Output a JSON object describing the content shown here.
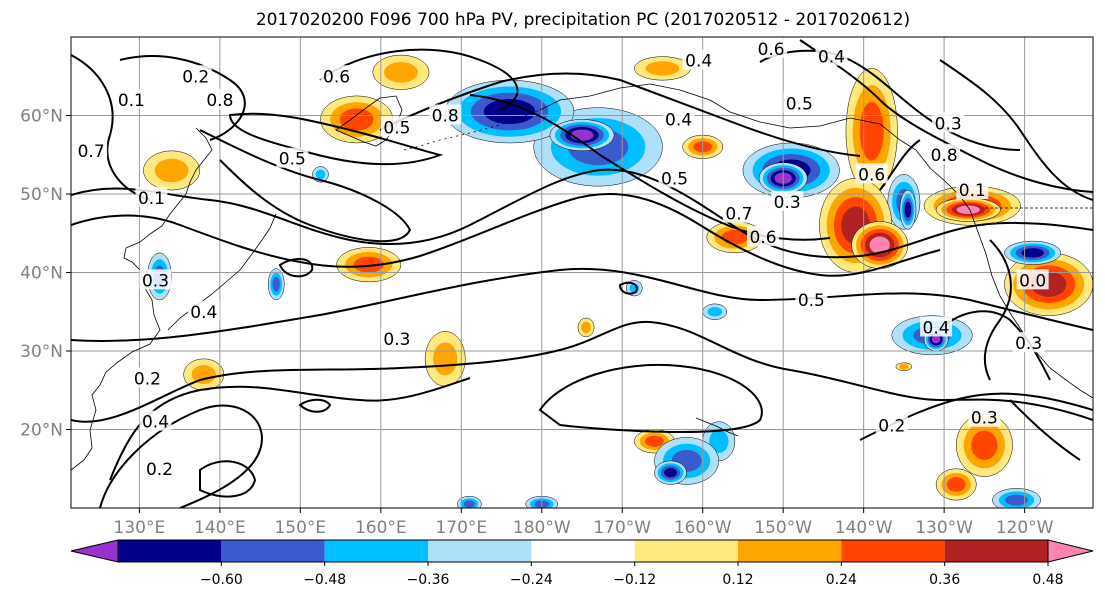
{
  "title": "2017020200 F096 700 hPa PV, precipitation PC (2017020512 - 2017020612)",
  "map": {
    "projection": "PlateCarree",
    "lon_range": [
      121.5,
      248.5
    ],
    "lat_range": [
      10,
      70
    ],
    "grid": true,
    "lat_ticks": [
      {
        "lat": 60,
        "label": "60°N"
      },
      {
        "lat": 50,
        "label": "50°N"
      },
      {
        "lat": 40,
        "label": "40°N"
      },
      {
        "lat": 30,
        "label": "30°N"
      },
      {
        "lat": 20,
        "label": "20°N"
      }
    ],
    "lon_ticks": [
      {
        "lon": 130,
        "label": "130°E"
      },
      {
        "lon": 140,
        "label": "140°E"
      },
      {
        "lon": 150,
        "label": "150°E"
      },
      {
        "lon": 160,
        "label": "160°E"
      },
      {
        "lon": 170,
        "label": "170°E"
      },
      {
        "lon": 180,
        "label": "180°W"
      },
      {
        "lon": 190,
        "label": "170°W"
      },
      {
        "lon": 200,
        "label": "160°W"
      },
      {
        "lon": 210,
        "label": "150°W"
      },
      {
        "lon": 220,
        "label": "140°W"
      },
      {
        "lon": 230,
        "label": "130°W"
      },
      {
        "lon": 240,
        "label": "120°W"
      }
    ],
    "pv_contour_labels": [
      {
        "text": "0.6",
        "lon": 154.5,
        "lat": 65
      },
      {
        "text": "0.8",
        "lon": 140,
        "lat": 62
      },
      {
        "text": "0.2",
        "lon": 137,
        "lat": 65
      },
      {
        "text": "0.1",
        "lon": 129,
        "lat": 62
      },
      {
        "text": "0.5",
        "lon": 149,
        "lat": 54.5
      },
      {
        "text": "0.5",
        "lon": 162,
        "lat": 58.5
      },
      {
        "text": "0.8",
        "lon": 168,
        "lat": 60
      },
      {
        "text": "0.4",
        "lon": 197,
        "lat": 59.5
      },
      {
        "text": "0.5",
        "lon": 196.5,
        "lat": 52
      },
      {
        "text": "0.7",
        "lon": 204.5,
        "lat": 47.5
      },
      {
        "text": "0.6",
        "lon": 207.5,
        "lat": 44.5
      },
      {
        "text": "0.3",
        "lon": 210.5,
        "lat": 49
      },
      {
        "text": "0.5",
        "lon": 213.5,
        "lat": 36.5
      },
      {
        "text": "0.3",
        "lon": 162,
        "lat": 31.5
      },
      {
        "text": "0.6",
        "lon": 208.5,
        "lat": 68.5
      },
      {
        "text": "0.4",
        "lon": 216,
        "lat": 67.5
      },
      {
        "text": "0.5",
        "lon": 212,
        "lat": 61.5
      },
      {
        "text": "0.4",
        "lon": 199.5,
        "lat": 67
      },
      {
        "text": "0.6",
        "lon": 221,
        "lat": 52.5
      },
      {
        "text": "0.8",
        "lon": 230,
        "lat": 55
      },
      {
        "text": "0.3",
        "lon": 230.5,
        "lat": 59
      },
      {
        "text": "0.1",
        "lon": 233.5,
        "lat": 50.5
      },
      {
        "text": "0.4",
        "lon": 229,
        "lat": 33
      },
      {
        "text": "0.3",
        "lon": 240.5,
        "lat": 31
      },
      {
        "text": "0.2",
        "lon": 223.5,
        "lat": 20.5
      },
      {
        "text": "0.3",
        "lon": 235,
        "lat": 21.5
      },
      {
        "text": "0.4",
        "lon": 132,
        "lat": 21
      },
      {
        "text": "0.2",
        "lon": 132.5,
        "lat": 15
      },
      {
        "text": "0.2",
        "lon": 131,
        "lat": 26.5
      },
      {
        "text": "0.3",
        "lon": 132,
        "lat": 39
      },
      {
        "text": "0.4",
        "lon": 138,
        "lat": 35
      },
      {
        "text": "0.7",
        "lon": 124,
        "lat": 55.5
      },
      {
        "text": "0.1",
        "lon": 131.5,
        "lat": 49.5
      },
      {
        "text": "0.0",
        "lon": 241,
        "lat": 39
      }
    ]
  },
  "precip_pc_features": [
    {
      "level": 0.36,
      "lon": 157,
      "lat": 59.5,
      "rx": 4.5,
      "ry": 3
    },
    {
      "level": 0.24,
      "lon": 162.5,
      "lat": 65.5,
      "rx": 3.5,
      "ry": 2.2
    },
    {
      "level": 0.24,
      "lon": 134,
      "lat": 53,
      "rx": 3.5,
      "ry": 2.5
    },
    {
      "level": 0.36,
      "lon": 158.5,
      "lat": 41,
      "rx": 4,
      "ry": 2.2
    },
    {
      "level": 0.36,
      "lon": 204,
      "lat": 44.5,
      "rx": 3.5,
      "ry": 2
    },
    {
      "level": 0.36,
      "lon": 200,
      "lat": 56,
      "rx": 2.5,
      "ry": 1.5
    },
    {
      "level": 0.24,
      "lon": 195,
      "lat": 66,
      "rx": 3.5,
      "ry": 1.5
    },
    {
      "level": 0.36,
      "lon": 221,
      "lat": 58,
      "rx": 3.2,
      "ry": 8
    },
    {
      "level": 0.48,
      "lon": 219,
      "lat": 46,
      "rx": 4.5,
      "ry": 6
    },
    {
      "level": 0.6,
      "lon": 222,
      "lat": 43.5,
      "rx": 3.5,
      "ry": 3
    },
    {
      "level": 0.48,
      "lon": 233.5,
      "lat": 48.5,
      "rx": 6,
      "ry": 2.5
    },
    {
      "level": 0.6,
      "lon": 233,
      "lat": 48,
      "rx": 4,
      "ry": 1.5
    },
    {
      "level": 0.48,
      "lon": 243,
      "lat": 38.5,
      "rx": 5.5,
      "ry": 4
    },
    {
      "level": 0.24,
      "lon": 168,
      "lat": 29,
      "rx": 2.5,
      "ry": 3.5
    },
    {
      "level": 0.24,
      "lon": 138,
      "lat": 27,
      "rx": 2.5,
      "ry": 2
    },
    {
      "level": 0.36,
      "lon": 194,
      "lat": 18.5,
      "rx": 2.5,
      "ry": 1.5
    },
    {
      "level": 0.36,
      "lon": 235,
      "lat": 18,
      "rx": 3.5,
      "ry": 4
    },
    {
      "level": 0.36,
      "lon": 231.5,
      "lat": 13,
      "rx": 2.5,
      "ry": 2
    },
    {
      "level": 0.24,
      "lon": 185.5,
      "lat": 33,
      "rx": 1,
      "ry": 1.2
    },
    {
      "level": 0.24,
      "lon": 225,
      "lat": 28,
      "rx": 1,
      "ry": 0.5
    },
    {
      "level": -0.48,
      "lon": 176,
      "lat": 60.5,
      "rx": 8,
      "ry": 4
    },
    {
      "level": -0.6,
      "lon": 185,
      "lat": 57.5,
      "rx": 4,
      "ry": 2
    },
    {
      "level": -0.36,
      "lon": 187,
      "lat": 56,
      "rx": 8,
      "ry": 5
    },
    {
      "level": -0.48,
      "lon": 211,
      "lat": 53,
      "rx": 6,
      "ry": 3.5
    },
    {
      "level": -0.6,
      "lon": 210,
      "lat": 52,
      "rx": 3,
      "ry": 2
    },
    {
      "level": -0.36,
      "lon": 225,
      "lat": 49,
      "rx": 2,
      "ry": 3.5
    },
    {
      "level": -0.48,
      "lon": 225.5,
      "lat": 48,
      "rx": 1,
      "ry": 2.5
    },
    {
      "level": -0.36,
      "lon": 228.5,
      "lat": 32,
      "rx": 5,
      "ry": 2.5
    },
    {
      "level": -0.6,
      "lon": 229,
      "lat": 31.5,
      "rx": 1.5,
      "ry": 1.5
    },
    {
      "level": -0.48,
      "lon": 241,
      "lat": 42.5,
      "rx": 3.5,
      "ry": 1.5
    },
    {
      "level": -0.36,
      "lon": 132.5,
      "lat": 39.5,
      "rx": 1.5,
      "ry": 3
    },
    {
      "level": -0.36,
      "lon": 147,
      "lat": 38.5,
      "rx": 1,
      "ry": 2
    },
    {
      "level": -0.36,
      "lon": 198,
      "lat": 16,
      "rx": 4,
      "ry": 3
    },
    {
      "level": -0.48,
      "lon": 196,
      "lat": 14.5,
      "rx": 2,
      "ry": 1.5
    },
    {
      "level": -0.24,
      "lon": 202,
      "lat": 18.5,
      "rx": 2,
      "ry": 2.5
    },
    {
      "level": -0.36,
      "lon": 180,
      "lat": 10.5,
      "rx": 2,
      "ry": 1
    },
    {
      "level": -0.36,
      "lon": 171,
      "lat": 10.5,
      "rx": 1.5,
      "ry": 1
    },
    {
      "level": -0.36,
      "lon": 239,
      "lat": 11,
      "rx": 3,
      "ry": 1.5
    },
    {
      "level": -0.24,
      "lon": 201.5,
      "lat": 35,
      "rx": 1.5,
      "ry": 1
    },
    {
      "level": -0.24,
      "lon": 191.5,
      "lat": 38,
      "rx": 1,
      "ry": 1
    },
    {
      "level": -0.24,
      "lon": 152.5,
      "lat": 52.5,
      "rx": 1,
      "ry": 1
    }
  ],
  "colorbar": {
    "levels": [
      -0.6,
      -0.48,
      -0.36,
      -0.24,
      -0.12,
      0.12,
      0.24,
      0.36,
      0.48,
      0.6
    ],
    "tick_labels": [
      "−0.60",
      "−0.48",
      "−0.36",
      "−0.24",
      "−0.12",
      "0.12",
      "0.24",
      "0.36",
      "0.48",
      "0.60"
    ],
    "colors": [
      "#9932cc",
      "#00008b",
      "#3a5bcd",
      "#00bfff",
      "#afe0fb",
      "#ffffff",
      "#ffe97f",
      "#ffa500",
      "#ff4500",
      "#b22222",
      "#ff84b2"
    ],
    "extend": "both"
  }
}
